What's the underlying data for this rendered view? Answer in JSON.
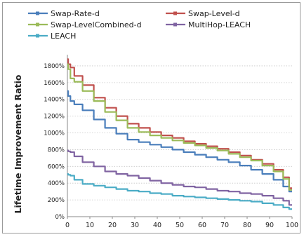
{
  "chart_data": {
    "type": "line",
    "title": "",
    "xlabel": "",
    "ylabel": "Lifetime Improvement Ratio",
    "xlim": [
      0,
      100
    ],
    "ylim": [
      0,
      1900
    ],
    "x_ticks": [
      0,
      10,
      20,
      30,
      40,
      50,
      60,
      70,
      80,
      90,
      100
    ],
    "y_ticks": [
      0,
      200,
      400,
      600,
      800,
      1000,
      1200,
      1400,
      1600,
      1800
    ],
    "y_tick_labels": [
      "0%",
      "200%",
      "400%",
      "600%",
      "800%",
      "1000%",
      "1200%",
      "1400%",
      "1600%",
      "1800%"
    ],
    "grid": "horizontal dotted",
    "legend_position": "top",
    "x": [
      0,
      1,
      2,
      5,
      10,
      15,
      20,
      25,
      30,
      35,
      40,
      45,
      50,
      55,
      60,
      65,
      70,
      75,
      80,
      85,
      90,
      95,
      98,
      100
    ],
    "series": [
      {
        "name": "Swap-Rate-d",
        "color": "#4a7ebb",
        "values": [
          1500,
          1440,
          1380,
          1340,
          1270,
          1160,
          1060,
          990,
          920,
          890,
          860,
          830,
          800,
          770,
          740,
          710,
          680,
          650,
          610,
          560,
          510,
          440,
          360,
          300
        ]
      },
      {
        "name": "Swap-Level-d",
        "color": "#c0504d",
        "values": [
          1880,
          1820,
          1780,
          1680,
          1570,
          1420,
          1300,
          1200,
          1110,
          1060,
          1010,
          970,
          940,
          900,
          870,
          840,
          810,
          770,
          730,
          680,
          630,
          560,
          470,
          340
        ]
      },
      {
        "name": "Swap-LevelCombined-d",
        "color": "#9bbb59",
        "values": [
          1820,
          1760,
          1650,
          1610,
          1500,
          1380,
          1250,
          1150,
          1060,
          1010,
          970,
          940,
          910,
          880,
          850,
          820,
          790,
          750,
          710,
          670,
          610,
          540,
          450,
          320
        ]
      },
      {
        "name": "MultiHop-LEACH",
        "color": "#8064a2",
        "values": [
          790,
          780,
          770,
          720,
          650,
          600,
          540,
          510,
          490,
          460,
          430,
          400,
          380,
          360,
          350,
          330,
          310,
          300,
          280,
          270,
          250,
          220,
          190,
          140
        ]
      },
      {
        "name": "LEACH",
        "color": "#4bacc6",
        "values": [
          510,
          500,
          490,
          440,
          390,
          370,
          350,
          330,
          310,
          300,
          280,
          270,
          250,
          240,
          230,
          220,
          210,
          200,
          190,
          180,
          160,
          140,
          110,
          90
        ]
      }
    ]
  }
}
